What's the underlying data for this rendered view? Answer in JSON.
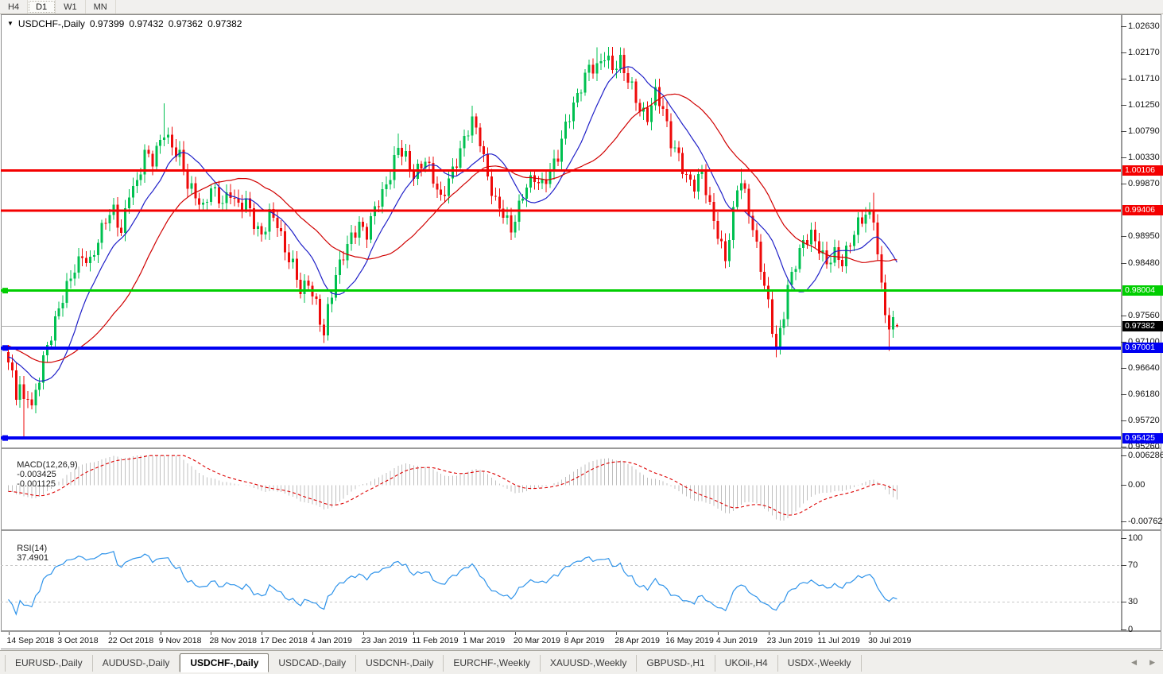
{
  "toolbar": {
    "timeframes": [
      "H4",
      "D1",
      "W1",
      "MN"
    ],
    "active": "D1"
  },
  "chart": {
    "symbol_label": "USDCHF-,Daily",
    "ohlc": {
      "open": "0.97399",
      "high": "0.97432",
      "low": "0.97362",
      "close": "0.97382"
    }
  },
  "chart_data": {
    "type": "candlestick",
    "title": "USDCHF-,Daily",
    "candles": 229,
    "bar_index_step_per_date": 13,
    "x_axis_dates": [
      "14 Sep 2018",
      "3 Oct 2018",
      "22 Oct 2018",
      "9 Nov 2018",
      "28 Nov 2018",
      "17 Dec 2018",
      "4 Jan 2019",
      "23 Jan 2019",
      "11 Feb 2019",
      "1 Mar 2019",
      "20 Mar 2019",
      "8 Apr 2019",
      "28 Apr 2019",
      "16 May 2019",
      "4 Jun 2019",
      "23 Jun 2019",
      "11 Jul 2019",
      "30 Jul 2019"
    ],
    "price_axis_ticks": [
      "1.02630",
      "1.02170",
      "1.01710",
      "1.01250",
      "1.00790",
      "1.00330",
      "0.99870",
      "0.98950",
      "0.98480",
      "0.97560",
      "0.97100",
      "0.96640",
      "0.96180",
      "0.95720",
      "0.95260"
    ],
    "axis_range": {
      "top": 1.0263,
      "bottom": 0.9526
    },
    "price_waypoints": [
      [
        0,
        0.9668
      ],
      [
        1,
        0.9645
      ],
      [
        2,
        0.9615
      ],
      [
        3,
        0.9632
      ],
      [
        4,
        0.9605
      ],
      [
        5,
        0.9626
      ],
      [
        6,
        0.9602
      ],
      [
        7,
        0.9628
      ],
      [
        8,
        0.9655
      ],
      [
        9,
        0.9682
      ],
      [
        11,
        0.9718
      ],
      [
        13,
        0.9762
      ],
      [
        15,
        0.9806
      ],
      [
        17,
        0.9845
      ],
      [
        19,
        0.9868
      ],
      [
        21,
        0.985
      ],
      [
        23,
        0.9882
      ],
      [
        25,
        0.992
      ],
      [
        27,
        0.994
      ],
      [
        29,
        0.9906
      ],
      [
        31,
        0.998
      ],
      [
        33,
        0.9988
      ],
      [
        35,
        1.0035
      ],
      [
        37,
        1.0022
      ],
      [
        40,
        1.0082
      ],
      [
        42,
        1.0058
      ],
      [
        44,
        1.004
      ],
      [
        46,
        0.9982
      ],
      [
        48,
        0.996
      ],
      [
        50,
        0.994
      ],
      [
        52,
        0.9986
      ],
      [
        55,
        0.996
      ],
      [
        57,
        0.9972
      ],
      [
        59,
        0.994
      ],
      [
        61,
        0.9952
      ],
      [
        63,
        0.992
      ],
      [
        65,
        0.9902
      ],
      [
        67,
        0.994
      ],
      [
        69,
        0.9918
      ],
      [
        71,
        0.9862
      ],
      [
        73,
        0.984
      ],
      [
        75,
        0.9802
      ],
      [
        77,
        0.9822
      ],
      [
        79,
        0.978
      ],
      [
        81,
        0.9722
      ],
      [
        82,
        0.9762
      ],
      [
        84,
        0.982
      ],
      [
        86,
        0.9862
      ],
      [
        88,
        0.99
      ],
      [
        90,
        0.9922
      ],
      [
        92,
        0.9902
      ],
      [
        94,
        0.994
      ],
      [
        96,
        0.9962
      ],
      [
        98,
        1.0002
      ],
      [
        100,
        1.0058
      ],
      [
        102,
        1.004
      ],
      [
        104,
        1.0002
      ],
      [
        107,
        1.0022
      ],
      [
        109,
        0.9992
      ],
      [
        111,
        0.9962
      ],
      [
        113,
        1.0002
      ],
      [
        115,
        1.003
      ],
      [
        117,
        1.0062
      ],
      [
        119,
        1.0092
      ],
      [
        121,
        1.006
      ],
      [
        123,
        1.0002
      ],
      [
        125,
        0.9962
      ],
      [
        127,
        0.994
      ],
      [
        129,
        0.9902
      ],
      [
        131,
        0.994
      ],
      [
        133,
        0.9982
      ],
      [
        135,
        1.0002
      ],
      [
        137,
        0.9992
      ],
      [
        139,
        1.0012
      ],
      [
        141,
        1.0032
      ],
      [
        143,
        1.0082
      ],
      [
        145,
        1.0122
      ],
      [
        147,
        1.0162
      ],
      [
        149,
        1.02
      ],
      [
        151,
        1.0192
      ],
      [
        153,
        1.0208
      ],
      [
        155,
        1.0182
      ],
      [
        157,
        1.02
      ],
      [
        160,
        1.0162
      ],
      [
        162,
        1.0122
      ],
      [
        164,
        1.0102
      ],
      [
        166,
        1.014
      ],
      [
        168,
        1.0112
      ],
      [
        170,
        1.0062
      ],
      [
        172,
        1.0042
      ],
      [
        174,
        1.0002
      ],
      [
        176,
        0.9982
      ],
      [
        178,
        1.0
      ],
      [
        180,
        0.9942
      ],
      [
        182,
        0.9902
      ],
      [
        184,
        0.9862
      ],
      [
        185,
        0.9902
      ],
      [
        186,
        0.994
      ],
      [
        187,
        0.9982
      ],
      [
        188,
        0.999
      ],
      [
        189,
        0.9962
      ],
      [
        191,
        0.9902
      ],
      [
        193,
        0.9842
      ],
      [
        195,
        0.9782
      ],
      [
        197,
        0.9702
      ],
      [
        199,
        0.9762
      ],
      [
        200,
        0.9802
      ],
      [
        202,
        0.9842
      ],
      [
        204,
        0.9882
      ],
      [
        206,
        0.9902
      ],
      [
        208,
        0.9882
      ],
      [
        210,
        0.9852
      ],
      [
        212,
        0.9862
      ],
      [
        214,
        0.9842
      ],
      [
        216,
        0.9882
      ],
      [
        218,
        0.9922
      ],
      [
        220,
        0.9942
      ],
      [
        222,
        0.9932
      ],
      [
        223,
        0.9862
      ],
      [
        224,
        0.9802
      ],
      [
        226,
        0.9722
      ],
      [
        227,
        0.9742
      ],
      [
        228,
        0.9738
      ]
    ],
    "wick_overrides": [
      {
        "i": 4,
        "low": 0.9545
      },
      {
        "i": 40,
        "high": 1.0128
      },
      {
        "i": 81,
        "low": 0.9716
      },
      {
        "i": 100,
        "high": 1.0075
      },
      {
        "i": 119,
        "high": 1.0124
      },
      {
        "i": 151,
        "high": 1.0226
      },
      {
        "i": 157,
        "high": 1.0225
      },
      {
        "i": 188,
        "high": 1.0014
      },
      {
        "i": 197,
        "low": 0.9693
      },
      {
        "i": 222,
        "high": 0.9972
      },
      {
        "i": 226,
        "low": 0.9695
      }
    ],
    "last_candle": {
      "open": 0.97399,
      "high": 0.97432,
      "low": 0.97362,
      "close": 0.97382
    },
    "current_price": 0.97382,
    "h_lines": [
      {
        "price": 1.00106,
        "label": "1.00106",
        "color": "#f40000",
        "thickness": 3
      },
      {
        "price": 0.99406,
        "label": "0.99406",
        "color": "#f40000",
        "thickness": 3
      },
      {
        "price": 0.98004,
        "label": "0.98004",
        "color": "#00ce00",
        "thickness": 3,
        "marker": true
      },
      {
        "price": 0.97001,
        "label": "0.97001",
        "color": "#0000f2",
        "thickness": 4,
        "marker": true
      },
      {
        "price": 0.95425,
        "label": "0.95425",
        "color": "#0000f2",
        "thickness": 4,
        "marker": true
      }
    ],
    "price_tags": [
      {
        "value": "1.00106",
        "price": 1.00106,
        "bg": "#f40000"
      },
      {
        "value": "0.99406",
        "price": 0.99406,
        "bg": "#f40000"
      },
      {
        "value": "0.98004",
        "price": 0.98004,
        "bg": "#00ce00"
      },
      {
        "value": "0.97382",
        "price": 0.97382,
        "bg": "#000000"
      },
      {
        "value": "0.97001",
        "price": 0.97001,
        "bg": "#0000f2"
      },
      {
        "value": "0.95425",
        "price": 0.95425,
        "bg": "#0000f2"
      }
    ],
    "candle_colors": {
      "bull": "#00c050",
      "bear": "#ee0a0a"
    },
    "moving_averages": [
      {
        "period": 12,
        "color": "#2020c8"
      },
      {
        "period": 30,
        "color": "#d00000"
      }
    ],
    "bid_line_color": "#ababab",
    "macd": {
      "label": "MACD(12,26,9)",
      "value_main": "-0.003425",
      "value_signal": "-0.001125",
      "axis_labels": [
        "0.006286",
        "0.00",
        "-0.00762"
      ],
      "axis_values": [
        0.006286,
        0,
        -0.00762
      ],
      "params": {
        "fast": 12,
        "slow": 26,
        "signal": 9
      },
      "histogram_color": "#bfbfbf",
      "signal_color": "#dd0000"
    },
    "rsi": {
      "label": "RSI(14)",
      "value": "37.4901",
      "period": 14,
      "axis_labels": [
        "100",
        "70",
        "30",
        "0"
      ],
      "axis_values": [
        100,
        70,
        30,
        0
      ],
      "levels": [
        70,
        30
      ],
      "color": "#2e93ea",
      "level_color": "#c8c8c8"
    }
  },
  "tabs": {
    "items": [
      "EURUSD-,Daily",
      "AUDUSD-,Daily",
      "USDCHF-,Daily",
      "USDCAD-,Daily",
      "USDCNH-,Daily",
      "EURCHF-,Weekly",
      "XAUUSD-,Weekly",
      "GBPUSD-,H1",
      "UKOil-,H4",
      "USDX-,Weekly"
    ],
    "active_index": 2
  }
}
